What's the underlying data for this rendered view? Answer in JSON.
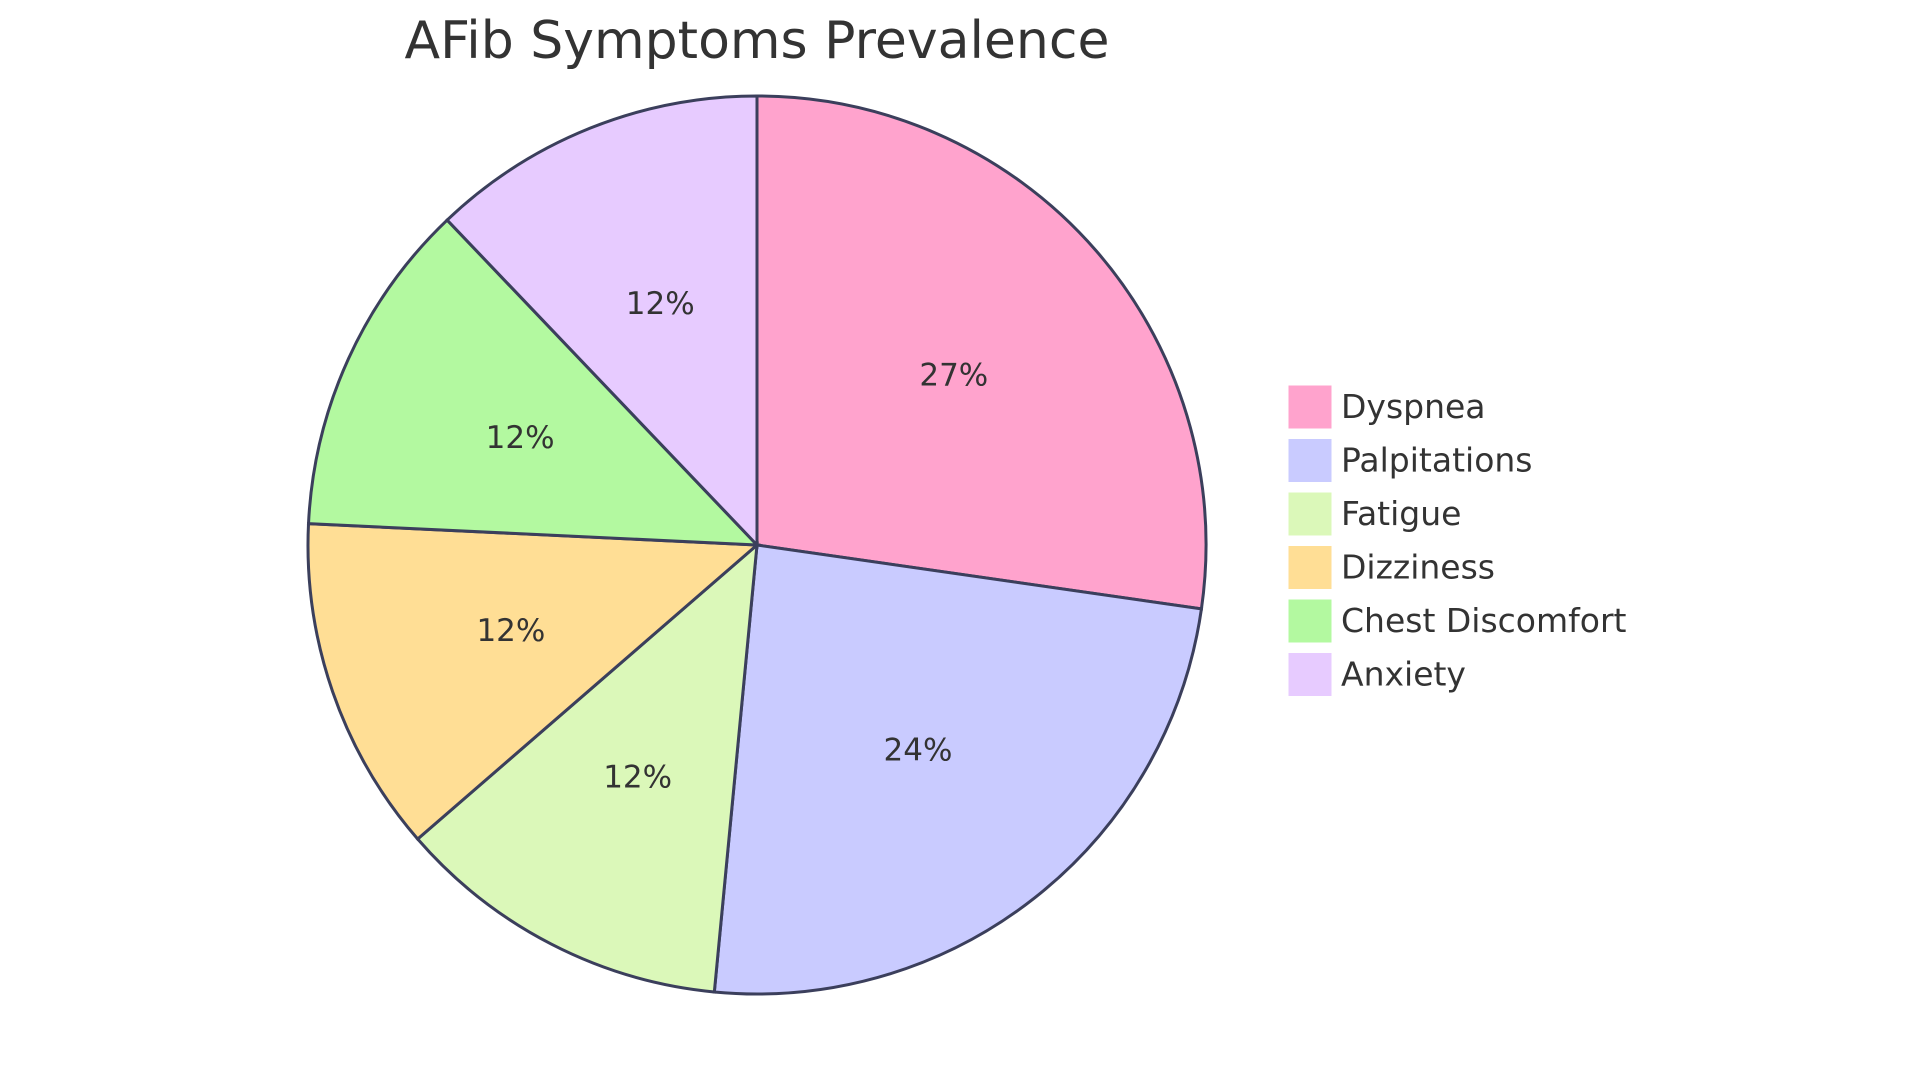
{
  "chart_data": {
    "type": "pie",
    "title": "AFib Symptoms Prevalence",
    "categories": [
      "Dyspnea",
      "Palpitations",
      "Fatigue",
      "Dizziness",
      "Chest Discomfort",
      "Anxiety"
    ],
    "values": [
      27,
      24,
      12,
      12,
      12,
      12
    ],
    "labels": [
      "27%",
      "24%",
      "12%",
      "12%",
      "12%",
      "12%"
    ],
    "colors": [
      "#ffa3cd",
      "#c9cbff",
      "#dbf8b9",
      "#ffde95",
      "#b3f9a0",
      "#e7cbff"
    ],
    "legend_position": "right"
  }
}
